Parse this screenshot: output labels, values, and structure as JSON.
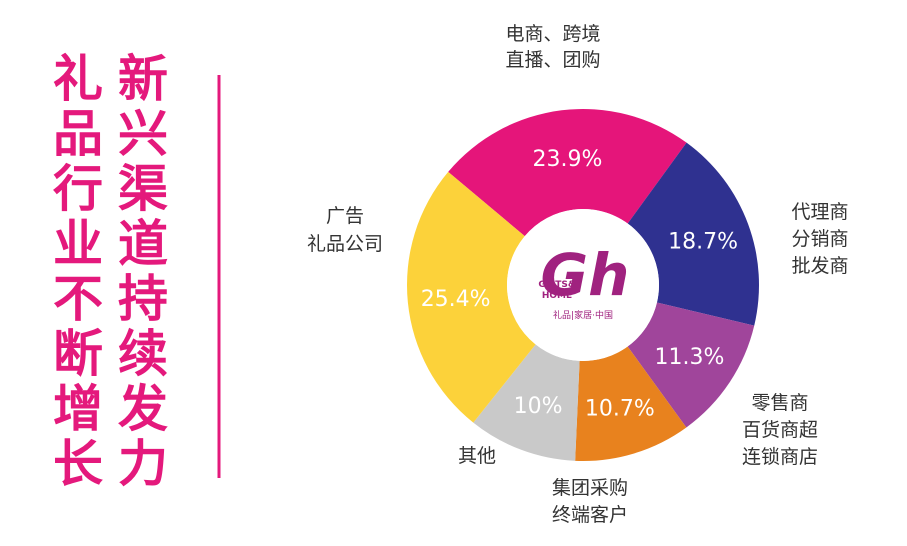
{
  "chart_data": {
    "type": "donut",
    "title_columns": [
      "礼品行业不断增长",
      "新兴渠道持续发力"
    ],
    "categories": [
      [
        "电商、跨境",
        "直播、团购"
      ],
      [
        "代理商",
        "分销商",
        "批发商"
      ],
      [
        "零售商",
        "百货商超",
        "连锁商店"
      ],
      [
        "集团采购",
        "终端客户"
      ],
      [
        "其他"
      ],
      [
        "广告",
        "礼品公司"
      ]
    ],
    "values": [
      23.9,
      18.7,
      11.3,
      10.7,
      10,
      25.4
    ],
    "value_labels": [
      "23.9%",
      "18.7%",
      "11.3%",
      "10.7%",
      "10%",
      "25.4%"
    ],
    "colors": [
      "#e5157a",
      "#2f3190",
      "#a0459b",
      "#e8821e",
      "#c9c9c9",
      "#fcd23a"
    ],
    "logo": {
      "mark": "Gh",
      "lines": [
        "GIFTS&",
        "HOME"
      ],
      "caption": "礼品|家居·中国"
    }
  }
}
